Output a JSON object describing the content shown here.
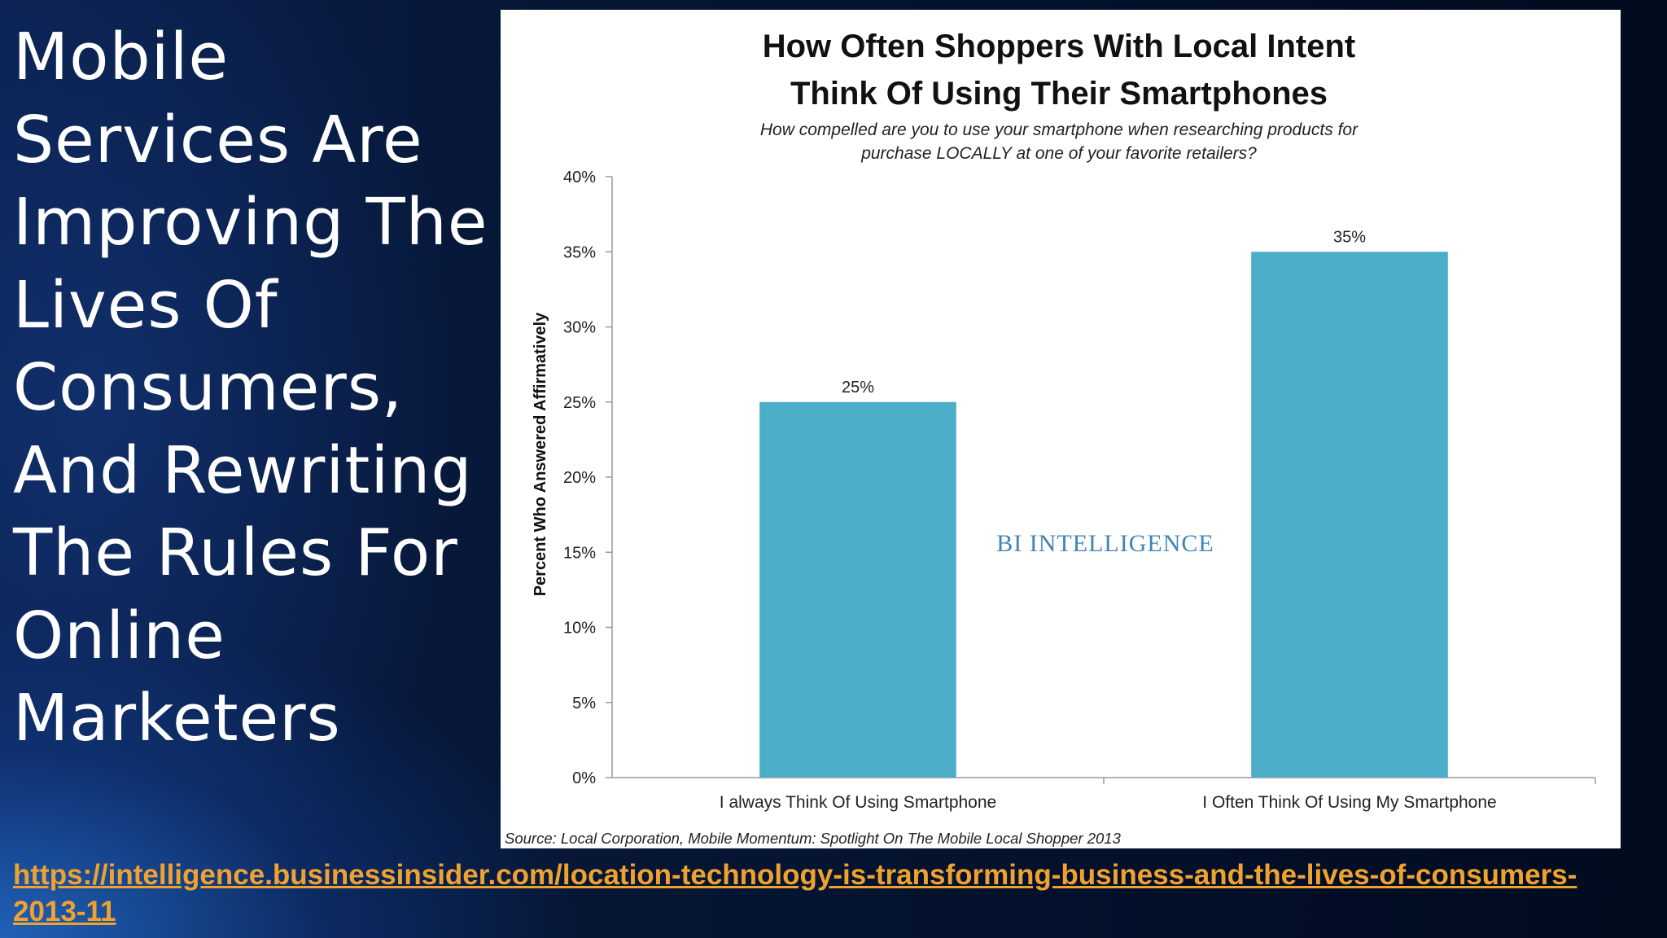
{
  "slide": {
    "title": "Mobile Services Are Improving The Lives Of Consumers, And Rewriting The Rules For Online Marketers",
    "link_text": "https://intelligence.businessinsider.com/location-technology-is-transforming-business-and-the-lives-of-consumers-2013-11",
    "background_color": "#061634",
    "title_color": "#ffffff",
    "link_color": "#f0a22e"
  },
  "chart_data": {
    "type": "bar",
    "title_lines": [
      "How Often Shoppers With Local Intent",
      "Think Of Using Their Smartphones"
    ],
    "subtitle_lines": [
      "How compelled are you to use your smartphone when researching products for",
      "purchase LOCALLY at one of your favorite retailers?"
    ],
    "categories": [
      "I always Think Of Using Smartphone",
      "I Often Think Of Using My Smartphone"
    ],
    "values": [
      25,
      35
    ],
    "data_labels": [
      "25%",
      "35%"
    ],
    "ylabel": "Percent Who Answered Affirmatively",
    "xlabel": "",
    "ylim": [
      0,
      40
    ],
    "yticks": [
      0,
      5,
      10,
      15,
      20,
      25,
      30,
      35,
      40
    ],
    "ytick_labels": [
      "0%",
      "5%",
      "10%",
      "15%",
      "20%",
      "25%",
      "30%",
      "35%",
      "40%"
    ],
    "watermark": "BI INTELLIGENCE",
    "source": "Source: Local Corporation, Mobile Momentum: Spotlight On The Mobile Local Shopper 2013",
    "grid": false,
    "legend": "none",
    "bar_color": "#4badc7",
    "watermark_color": "#3f86b3"
  }
}
